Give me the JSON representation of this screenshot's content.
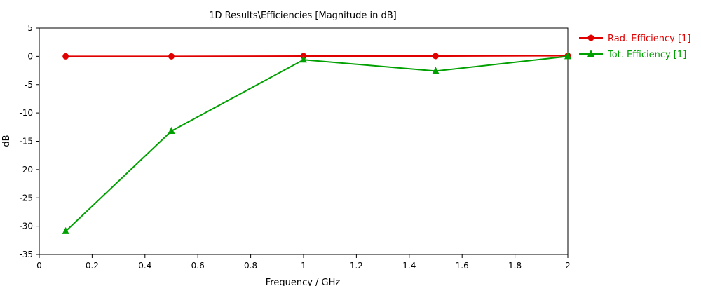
{
  "chart_data": {
    "type": "line",
    "title": "1D Results\\Efficiencies [Magnitude in dB]",
    "xlabel": "Frequency / GHz",
    "ylabel": "dB",
    "xlim": [
      0,
      2
    ],
    "ylim": [
      -35,
      5
    ],
    "xticks": [
      0,
      0.2,
      0.4,
      0.6,
      0.8,
      1,
      1.2,
      1.4,
      1.6,
      1.8,
      2
    ],
    "xtick_labels": [
      "0",
      "0.2",
      "0.4",
      "0.6",
      "0.8",
      "1",
      "1.2",
      "1.4",
      "1.6",
      "1.8",
      "2"
    ],
    "yticks": [
      5,
      0,
      -5,
      -10,
      -15,
      -20,
      -25,
      -30,
      -35
    ],
    "ytick_labels": [
      "5",
      "0",
      "-5",
      "-10",
      "-15",
      "-20",
      "-25",
      "-30",
      "-35"
    ],
    "grid": false,
    "legend_position": "right",
    "series": [
      {
        "name": "Rad. Efficiency [1]",
        "color": "#e00000",
        "marker": "circle",
        "x": [
          0.1,
          0.5,
          1.0,
          1.5,
          2.0
        ],
        "y": [
          0.0,
          0.0,
          0.05,
          0.05,
          0.1
        ]
      },
      {
        "name": "Tot. Efficiency [1]",
        "color": "#00a000",
        "marker": "triangle",
        "x": [
          0.1,
          0.5,
          1.0,
          1.5,
          2.0
        ],
        "y": [
          -30.9,
          -13.2,
          -0.6,
          -2.6,
          0.0
        ]
      }
    ]
  }
}
